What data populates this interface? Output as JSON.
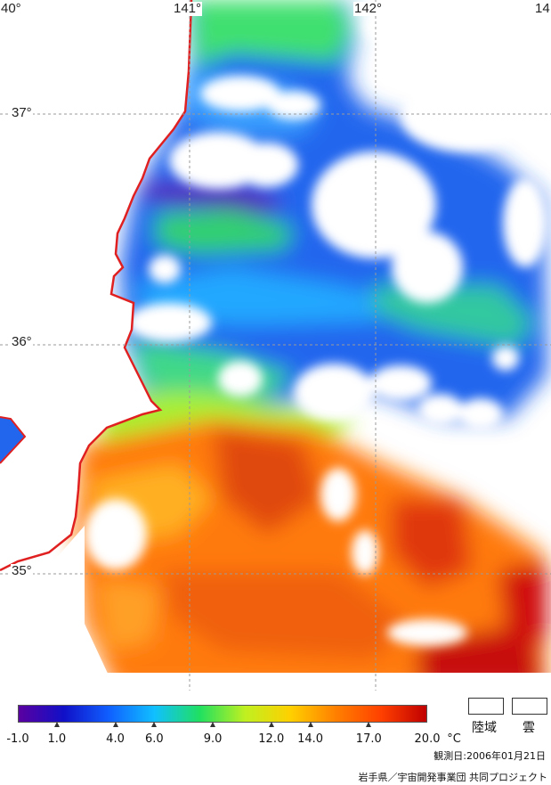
{
  "map": {
    "lon_labels": [
      "40°",
      "141°",
      "142°",
      "14"
    ],
    "lat_labels": [
      "37°",
      "36°",
      "35°"
    ],
    "coast_color": "#e02020",
    "grid_color": "#9a9a9a"
  },
  "colorbar": {
    "unit": "°C",
    "ticks": [
      "-1.0",
      "1.0",
      "4.0",
      "6.0",
      "9.0",
      "12.0",
      "14.0",
      "17.0",
      "20.0"
    ],
    "gradient": [
      "#5a00a0",
      "#1010c8",
      "#1060ff",
      "#10c0ff",
      "#20e060",
      "#c0f020",
      "#ffd000",
      "#ff8000",
      "#ff4000",
      "#c00000"
    ]
  },
  "legend": {
    "land_label": "陸域",
    "cloud_label": "雲"
  },
  "footer": {
    "date": "観測日:2006年01月21日",
    "credit": "岩手県／宇宙開発事業団 共同プロジェクト"
  }
}
